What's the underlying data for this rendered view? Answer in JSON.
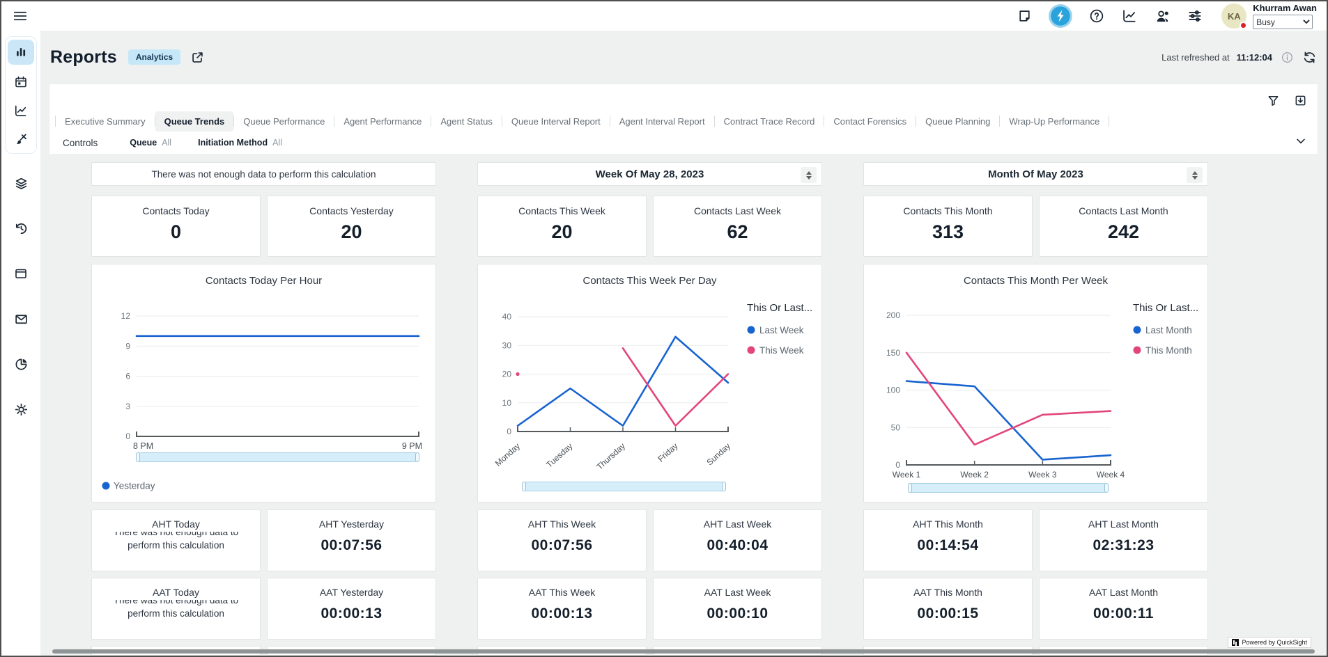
{
  "topbar": {
    "icons": [
      "note",
      "lightning",
      "help",
      "metrics",
      "agents",
      "filters"
    ],
    "user": {
      "initials": "KA",
      "name": "Khurram Awan",
      "status": "Busy"
    }
  },
  "sidebar": {
    "items": [
      "bar-chart",
      "calendar",
      "line-chart",
      "brush",
      "layers",
      "history",
      "window",
      "mail",
      "pie-chart",
      "gear"
    ],
    "active_item": "bar-chart"
  },
  "header": {
    "title": "Reports",
    "badge": "Analytics",
    "last_refreshed_label": "Last refreshed at",
    "last_refreshed_time": "11:12:04"
  },
  "tabs": {
    "items": [
      {
        "label": "Executive Summary",
        "active": false
      },
      {
        "label": "Queue Trends",
        "active": true
      },
      {
        "label": "Queue Performance",
        "active": false
      },
      {
        "label": "Agent Performance",
        "active": false
      },
      {
        "label": "Agent Status",
        "active": false
      },
      {
        "label": "Queue Interval Report",
        "active": false
      },
      {
        "label": "Agent Interval Report",
        "active": false
      },
      {
        "label": "Contract Trace Record",
        "active": false
      },
      {
        "label": "Contact Forensics",
        "active": false
      },
      {
        "label": "Queue Planning",
        "active": false
      },
      {
        "label": "Wrap-Up Performance",
        "active": false
      }
    ]
  },
  "controls": {
    "title": "Controls",
    "filters": [
      {
        "label": "Queue",
        "value": "All"
      },
      {
        "label": "Initiation Method",
        "value": "All"
      }
    ]
  },
  "columns": [
    {
      "header": "There was not enough data to perform this calculation",
      "kpis": [
        {
          "label": "Contacts Today",
          "value": "0"
        },
        {
          "label": "Contacts Yesterday",
          "value": "20"
        }
      ],
      "metrics": [
        {
          "label": "AHT Today",
          "message": "There was not enough data to perform this calculation"
        },
        {
          "label": "AHT Yesterday",
          "value": "00:07:56"
        },
        {
          "label": "AAT Today",
          "message": "There was not enough data to perform this calculation"
        },
        {
          "label": "AAT Yesterday",
          "value": "00:00:13"
        }
      ]
    },
    {
      "header": "Week Of May 28, 2023",
      "kpis": [
        {
          "label": "Contacts This Week",
          "value": "20"
        },
        {
          "label": "Contacts Last Week",
          "value": "62"
        }
      ],
      "metrics": [
        {
          "label": "AHT This Week",
          "value": "00:07:56"
        },
        {
          "label": "AHT Last Week",
          "value": "00:40:04"
        },
        {
          "label": "AAT This Week",
          "value": "00:00:13"
        },
        {
          "label": "AAT Last Week",
          "value": "00:00:10"
        }
      ]
    },
    {
      "header": "Month Of May 2023",
      "kpis": [
        {
          "label": "Contacts This Month",
          "value": "313"
        },
        {
          "label": "Contacts Last Month",
          "value": "242"
        }
      ],
      "metrics": [
        {
          "label": "AHT This Month",
          "value": "00:14:54"
        },
        {
          "label": "AHT Last Month",
          "value": "02:31:23"
        },
        {
          "label": "AAT This Month",
          "value": "00:00:15"
        },
        {
          "label": "AAT Last Month",
          "value": "00:00:11"
        }
      ]
    }
  ],
  "chart_data": [
    {
      "type": "line",
      "title": "Contacts Today Per Hour",
      "categories": [
        "8 PM",
        "9 PM"
      ],
      "ylim": [
        0,
        12
      ],
      "yticks": [
        0,
        3,
        6,
        9,
        12
      ],
      "grid": true,
      "legend": {
        "position": "bottom-left"
      },
      "series": [
        {
          "name": "Yesterday",
          "color": "#1763d0",
          "values": [
            10,
            10
          ]
        }
      ]
    },
    {
      "type": "line",
      "title": "Contacts This Week Per Day",
      "categories": [
        "Monday",
        "Tuesday",
        "Thursday",
        "Friday",
        "Sunday"
      ],
      "ylim": [
        0,
        40
      ],
      "yticks": [
        0,
        10,
        20,
        30,
        40
      ],
      "grid": true,
      "legend_title": "This Or Last...",
      "legend": {
        "position": "right"
      },
      "series": [
        {
          "name": "Last Week",
          "color": "#1763d0",
          "values": [
            2,
            15,
            2,
            33,
            17
          ]
        },
        {
          "name": "This Week",
          "color": "#e2457c",
          "values": [
            20,
            null,
            29,
            2,
            20
          ]
        }
      ]
    },
    {
      "type": "line",
      "title": "Contacts This Month Per Week",
      "categories": [
        "Week 1",
        "Week 2",
        "Week 3",
        "Week 4"
      ],
      "ylim": [
        0,
        200
      ],
      "yticks": [
        0,
        50,
        100,
        150,
        200
      ],
      "grid": true,
      "legend_title": "This Or Last...",
      "legend": {
        "position": "right"
      },
      "series": [
        {
          "name": "Last Month",
          "color": "#1763d0",
          "values": [
            112,
            105,
            7,
            13
          ]
        },
        {
          "name": "This Month",
          "color": "#e2457c",
          "values": [
            150,
            27,
            67,
            72
          ]
        }
      ]
    }
  ],
  "footer": {
    "powered_by": "Powered by QuickSight"
  },
  "colors": {
    "accent_blue": "#1763d0",
    "accent_pink": "#e2457c",
    "badge_bg": "#c6e7f7",
    "active_icon_bg": "#cbe7f7",
    "lightning_bg": "#2aa2dc",
    "status_dot": "#e01e28",
    "slider_fill": "#d6eefa",
    "dashboard_bg": "#eff1f1"
  }
}
